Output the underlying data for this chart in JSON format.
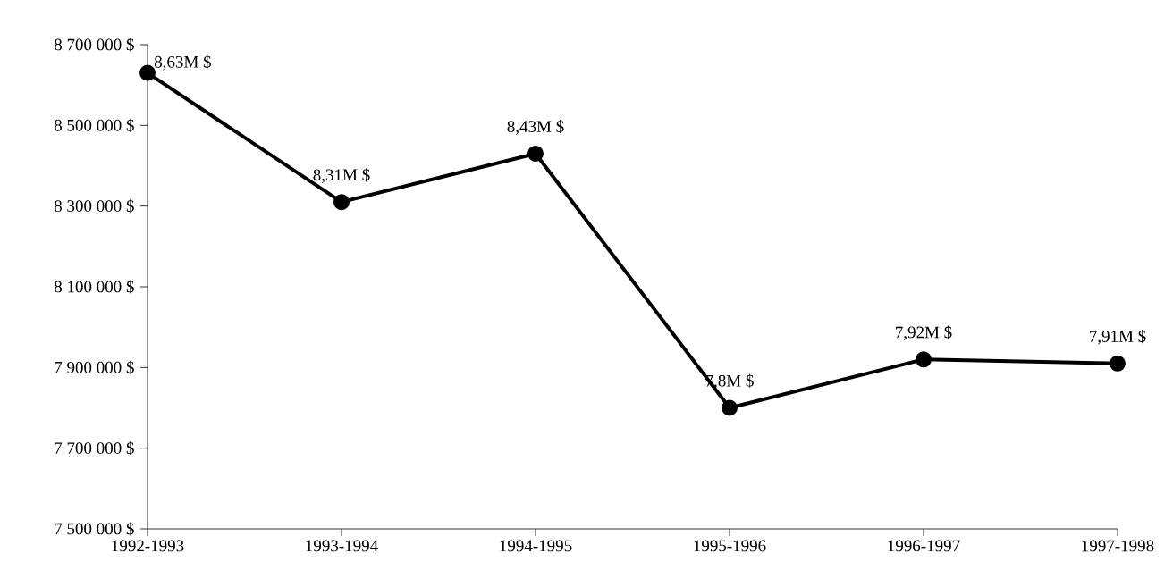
{
  "chart_data": {
    "type": "line",
    "categories": [
      "1992-1993",
      "1993-1994",
      "1994-1995",
      "1995-1996",
      "1996-1997",
      "1997-1998"
    ],
    "values": [
      8630000,
      8310000,
      8430000,
      7800000,
      7920000,
      7910000
    ],
    "value_labels": [
      "8,63M $",
      "8,31M $",
      "8,43M $",
      "7,8M $",
      "7,92M $",
      "7,91M $"
    ],
    "color": "#000000",
    "marker": "circle",
    "line_style": "solid",
    "ylim": [
      7500000,
      8700000
    ],
    "yticks": [
      {
        "value": 7500000,
        "label": "7 500 000 $"
      },
      {
        "value": 7700000,
        "label": "7 700 000 $"
      },
      {
        "value": 7900000,
        "label": "7 900 000 $"
      },
      {
        "value": 8100000,
        "label": "8 100 000 $"
      },
      {
        "value": 8300000,
        "label": "8 300 000 $"
      },
      {
        "value": 8500000,
        "label": "8 500 000 $"
      },
      {
        "value": 8700000,
        "label": "8 700 000 $"
      }
    ]
  }
}
